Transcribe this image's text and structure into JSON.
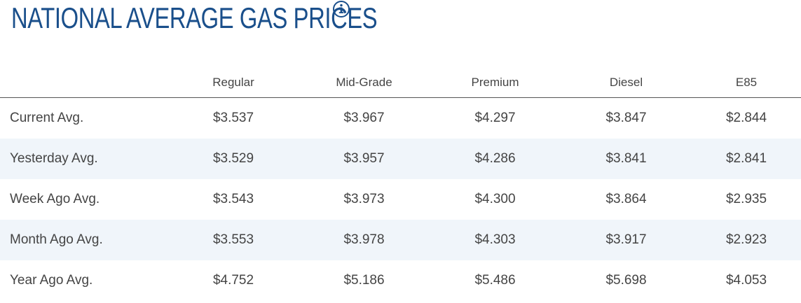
{
  "header": {
    "title": "NATIONAL AVERAGE GAS PRICES",
    "info_icon": "info-circle-icon"
  },
  "colors": {
    "title": "#1a4f8b",
    "text": "#444444",
    "row_shade": "#f0f5fa",
    "header_rule": "#555555"
  },
  "table": {
    "columns": [
      "",
      "Regular",
      "Mid-Grade",
      "Premium",
      "Diesel",
      "E85"
    ],
    "rows": [
      {
        "label": "Current Avg.",
        "values": [
          "$3.537",
          "$3.967",
          "$4.297",
          "$3.847",
          "$2.844"
        ]
      },
      {
        "label": "Yesterday Avg.",
        "values": [
          "$3.529",
          "$3.957",
          "$4.286",
          "$3.841",
          "$2.841"
        ]
      },
      {
        "label": "Week Ago Avg.",
        "values": [
          "$3.543",
          "$3.973",
          "$4.300",
          "$3.864",
          "$2.935"
        ]
      },
      {
        "label": "Month Ago Avg.",
        "values": [
          "$3.553",
          "$3.978",
          "$4.303",
          "$3.917",
          "$2.923"
        ]
      },
      {
        "label": "Year Ago Avg.",
        "values": [
          "$4.752",
          "$5.186",
          "$5.486",
          "$5.698",
          "$4.053"
        ]
      }
    ]
  }
}
